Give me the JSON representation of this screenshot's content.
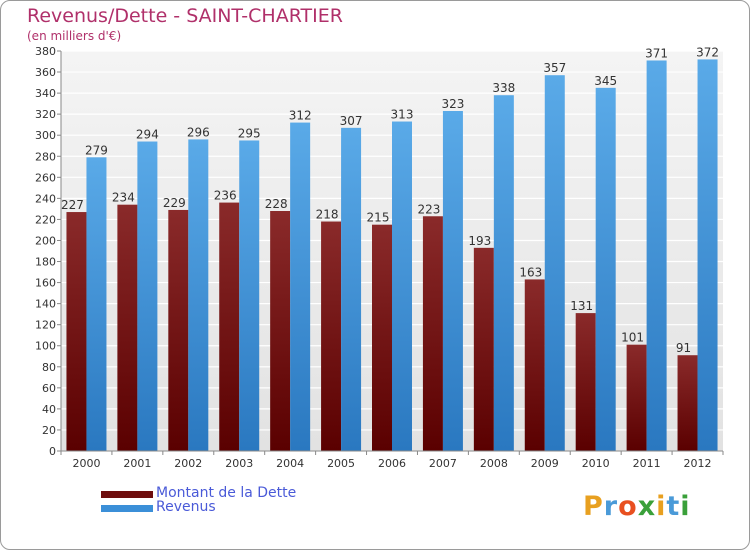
{
  "title": "Revenus/Dette - SAINT-CHARTIER",
  "subtitle": "(en milliers d'€)",
  "colors": {
    "dette": "#6e0d0d",
    "revenus": "#3b8fd8",
    "title": "#b0306a",
    "legend_text": "#4a5ad8"
  },
  "legend": {
    "items": [
      {
        "label": "Montant de la Dette",
        "color": "#6e0d0d"
      },
      {
        "label": "Revenus",
        "color": "#3b8fd8"
      }
    ]
  },
  "logo": {
    "letters": [
      "P",
      "r",
      "o",
      "x",
      "i",
      "t",
      "i"
    ],
    "colors": [
      "#e8a020",
      "#4a9ad8",
      "#e85020",
      "#3aa03a",
      "#e8a020",
      "#4a9ad8",
      "#3aa03a"
    ]
  },
  "chart_data": {
    "type": "bar",
    "categories": [
      "2000",
      "2001",
      "2002",
      "2003",
      "2004",
      "2005",
      "2006",
      "2007",
      "2008",
      "2009",
      "2010",
      "2011",
      "2012"
    ],
    "series": [
      {
        "name": "Montant de la Dette",
        "values": [
          227,
          234,
          229,
          236,
          228,
          218,
          215,
          223,
          193,
          163,
          131,
          101,
          91
        ]
      },
      {
        "name": "Revenus",
        "values": [
          279,
          294,
          296,
          295,
          312,
          307,
          313,
          323,
          338,
          357,
          345,
          371,
          372
        ]
      }
    ],
    "ylim": [
      0,
      380
    ],
    "yticks": [
      0,
      20,
      40,
      60,
      80,
      100,
      120,
      140,
      160,
      180,
      200,
      220,
      240,
      260,
      280,
      300,
      320,
      340,
      360,
      380
    ],
    "grid": true,
    "legend_position": "bottom-left"
  }
}
